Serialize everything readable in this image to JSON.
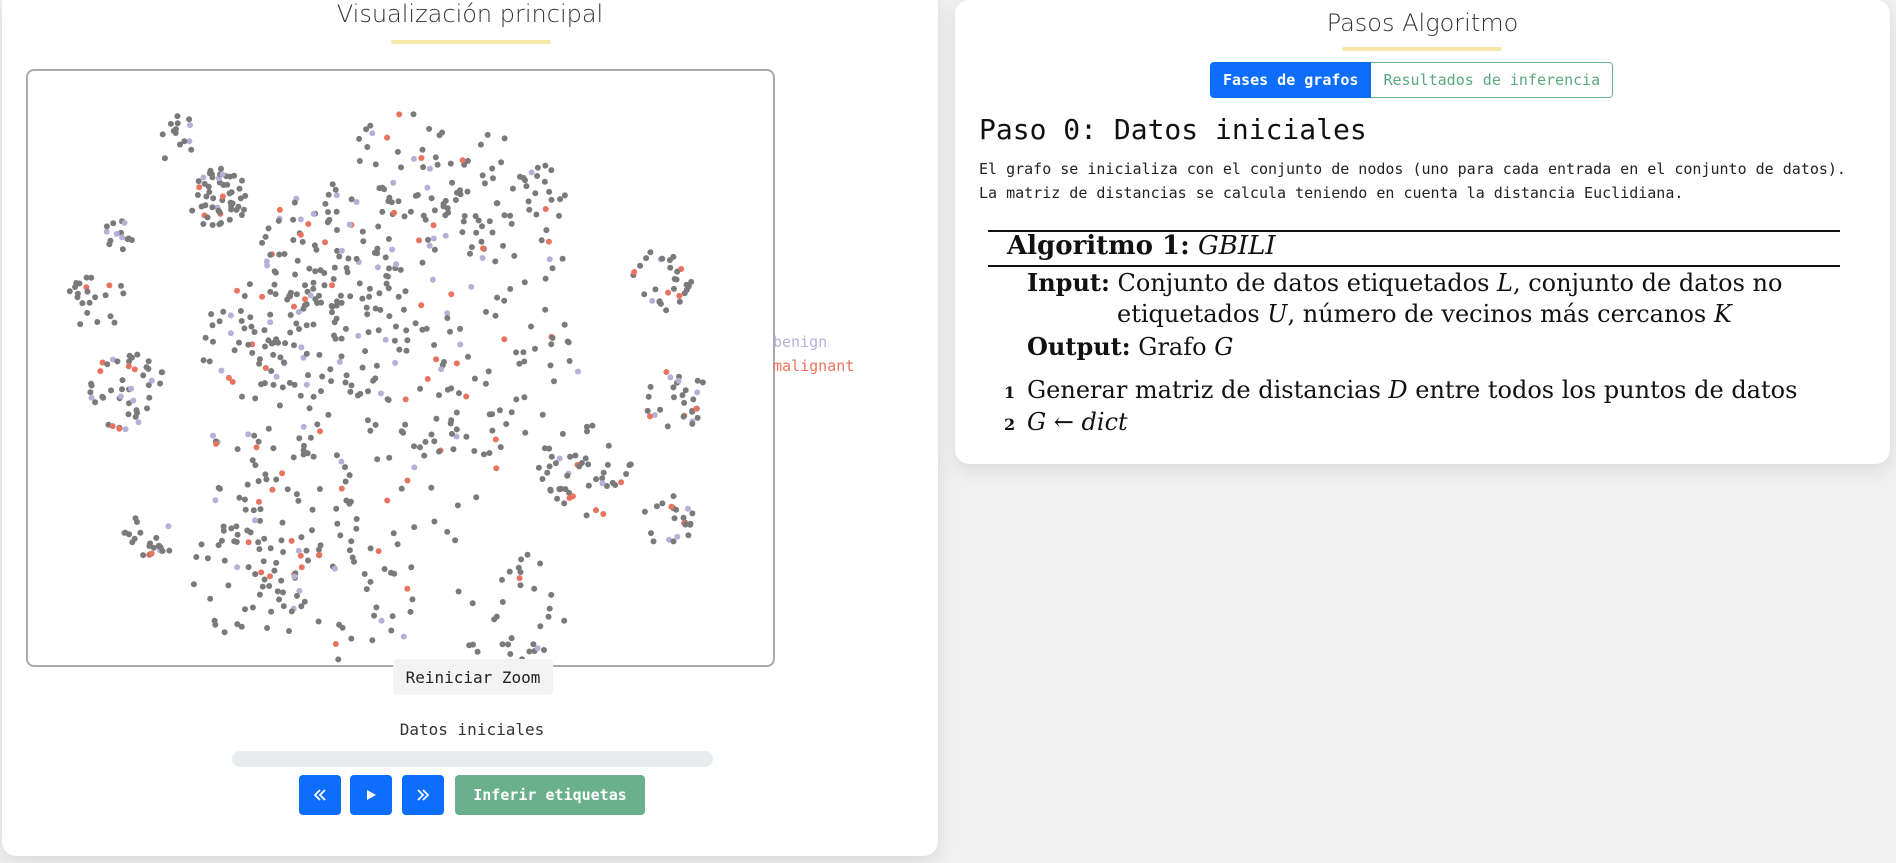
{
  "left_panel": {
    "title": "Visualización principal",
    "legend": [
      {
        "label": "benign",
        "color": "#b4b0d8"
      },
      {
        "label": "malignant",
        "color": "#e8735e"
      }
    ],
    "reset_zoom_label": "Reiniciar Zoom",
    "step_label": "Datos iniciales",
    "progress": 0,
    "controls": {
      "prev_icon": "double-chevron-left-icon",
      "play_icon": "play-icon",
      "next_icon": "double-chevron-right-icon",
      "infer_label": "Inferir etiquetas"
    }
  },
  "right_panel": {
    "title": "Pasos Algoritmo",
    "tabs": [
      {
        "label": "Fases de grafos",
        "active": true
      },
      {
        "label": "Resultados de inferencia",
        "active": false
      }
    ],
    "step_heading": "Paso 0: Datos iniciales",
    "step_description": "El grafo se inicializa con el conjunto de nodos (uno para cada entrada en el conjunto de datos). La matriz de distancias se calcula teniendo en cuenta la distancia Euclidiana.",
    "algorithm": {
      "title_prefix": "Algoritmo 1:",
      "name": "GBILI",
      "input_label": "Input:",
      "input_line1_a": "Conjunto de datos etiquetados ",
      "input_var_L": "L",
      "input_line1_b": ", conjunto de datos no",
      "input_line2_a": "etiquetados ",
      "input_var_U": "U",
      "input_line2_b": ", número de vecinos más cercanos ",
      "input_var_K": "K",
      "output_label": "Output:",
      "output_text": "Grafo ",
      "output_var": "G",
      "steps": [
        {
          "num": "1",
          "text": "Generar matriz de distancias ",
          "var": "D",
          "text_after": " entre todos los puntos de datos"
        },
        {
          "num": "2",
          "lhs": "G",
          "arrow": " ← ",
          "rhs": "dict"
        }
      ]
    }
  },
  "scatter_colors": {
    "unlabeled": "#7a7a7a",
    "benign": "#b4b0d8",
    "malignant": "#e8735e"
  }
}
